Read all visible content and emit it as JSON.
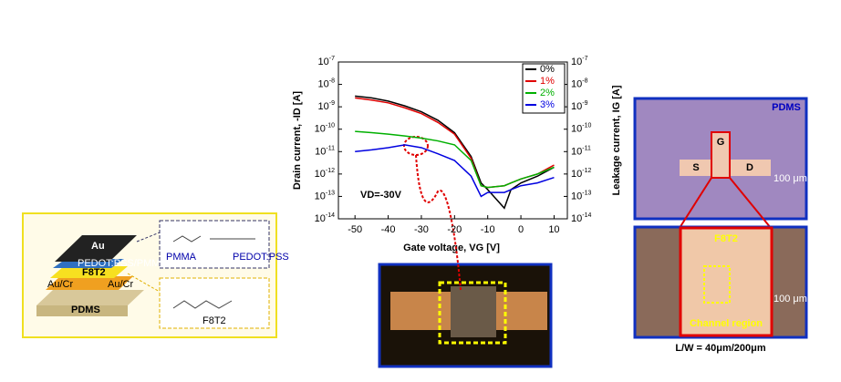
{
  "chart_data": {
    "type": "line",
    "x_label": "Gate voltage, VG [V]",
    "y_label": "Drain current, -ID [A]",
    "y2_label": "Leakage current, IG [A]",
    "annotation": "VD=-30V",
    "log_y": true,
    "x": [
      -50,
      -45,
      -40,
      -35,
      -30,
      -25,
      -20,
      -15,
      -12,
      -10,
      -5,
      -3,
      0,
      5,
      10
    ],
    "series": [
      {
        "name": "0%",
        "color": "#000000",
        "values": [
          3e-09,
          2.5e-09,
          1.8e-09,
          1.1e-09,
          6e-10,
          2.5e-10,
          7e-11,
          6e-12,
          4e-13,
          2e-13,
          3e-14,
          2e-13,
          4e-13,
          8e-13,
          2e-12
        ]
      },
      {
        "name": "1%",
        "color": "#e00000",
        "values": [
          2.5e-09,
          2e-09,
          1.5e-09,
          9e-10,
          5e-10,
          2e-10,
          6e-11,
          5e-12,
          3e-13,
          2.5e-13,
          3e-13,
          4e-13,
          6e-13,
          1e-12,
          2.5e-12
        ]
      },
      {
        "name": "2%",
        "color": "#00b000",
        "values": [
          8e-11,
          7e-11,
          6e-11,
          5e-11,
          4e-11,
          3e-11,
          2e-11,
          4e-12,
          3e-13,
          2.5e-13,
          3e-13,
          4e-13,
          6e-13,
          1e-12,
          2e-12
        ]
      },
      {
        "name": "3%",
        "color": "#0000e0",
        "values": [
          1e-11,
          1.2e-11,
          1.5e-11,
          2e-11,
          1.5e-11,
          8e-12,
          4e-12,
          8e-13,
          1e-13,
          1.5e-13,
          1.5e-13,
          2e-13,
          3e-13,
          4e-13,
          7e-13
        ]
      }
    ],
    "xlim": [
      -55,
      14
    ],
    "xticks": [
      -50,
      -40,
      -30,
      -20,
      -10,
      0,
      10
    ],
    "ylim": [
      1e-14,
      1e-07
    ],
    "yticks": [
      {
        "value": 1e-14,
        "label": "10-14"
      },
      {
        "value": 1e-13,
        "label": "10-13"
      },
      {
        "value": 1e-12,
        "label": "10-12"
      },
      {
        "value": 1e-11,
        "label": "10-11"
      },
      {
        "value": 1e-10,
        "label": "10-10"
      },
      {
        "value": 1e-09,
        "label": "10-9"
      },
      {
        "value": 1e-08,
        "label": "10-8"
      },
      {
        "value": 1e-07,
        "label": "10-7"
      }
    ],
    "y2lim": [
      1e-14,
      1e-07
    ],
    "y2ticks": [
      {
        "value": 1e-14,
        "label": "10-14"
      },
      {
        "value": 1e-13,
        "label": "10-13"
      },
      {
        "value": 1e-12,
        "label": "10-12"
      },
      {
        "value": 1e-11,
        "label": "10-11"
      },
      {
        "value": 1e-10,
        "label": "10-10"
      },
      {
        "value": 1e-09,
        "label": "10-9"
      },
      {
        "value": 1e-08,
        "label": "10-8"
      },
      {
        "value": 1e-07,
        "label": "10-7"
      }
    ],
    "legend": "upper right"
  },
  "schematic": {
    "layers": [
      "Au",
      "PEDOT:PSS/PMMA",
      "F8T2",
      "Au/Cr",
      "Au/Cr",
      "PDMS"
    ],
    "molecule_labels": [
      "PMMA",
      "PEDOT:PSS",
      "F8T2"
    ]
  },
  "micrograph_top": {
    "label": "PDMS",
    "gate": "G",
    "source": "S",
    "drain": "D",
    "scale": "100 μm"
  },
  "micrograph_bottom": {
    "label": "F8T2",
    "scale": "100 μm",
    "region": "Channel region",
    "caption": "L/W = 40μm/200μm"
  }
}
